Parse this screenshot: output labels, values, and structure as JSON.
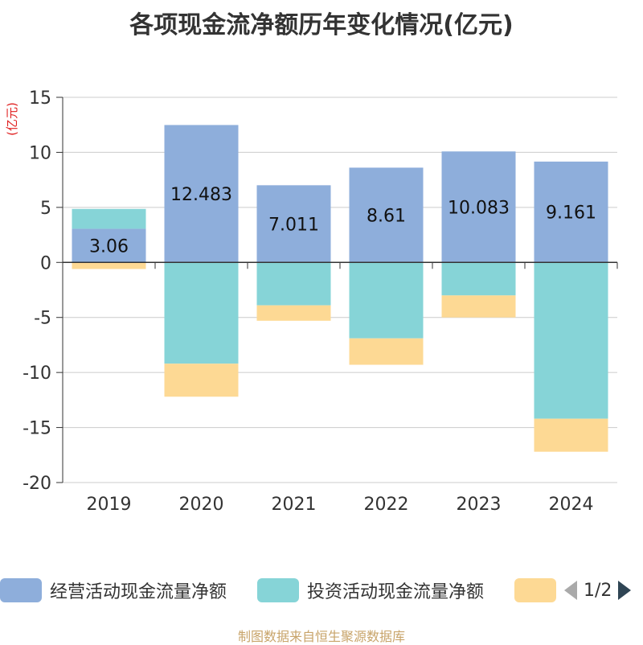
{
  "title": "各项现金流净额历年变化情况(亿元)",
  "footer": "制图数据来自恒生聚源数据库",
  "legend": {
    "items": [
      {
        "label": "经营活动现金流量净额",
        "color": "#8eaedb"
      },
      {
        "label": "投资活动现金流量净额",
        "color": "#86d4d7"
      },
      {
        "label": "",
        "color": "#fdd994"
      }
    ],
    "page": "1/2"
  },
  "chart_data": {
    "type": "bar",
    "stacked": true,
    "categories": [
      "2019",
      "2020",
      "2021",
      "2022",
      "2023",
      "2024"
    ],
    "ylabel": "(亿元)",
    "ylim": [
      -20,
      15
    ],
    "yticks": [
      15,
      10,
      5,
      0,
      -5,
      -10,
      -15,
      -20
    ],
    "grid": true,
    "series": [
      {
        "name": "经营活动现金流量净额",
        "color": "#8eaedb",
        "values": [
          3.06,
          12.483,
          7.011,
          8.61,
          10.083,
          9.161
        ],
        "labels": [
          "3.06",
          "12.483",
          "7.011",
          "8.61",
          "10.083",
          "9.161"
        ]
      },
      {
        "name": "投资活动现金流量净额",
        "color": "#86d4d7",
        "values": [
          1.8,
          -9.2,
          -3.9,
          -6.9,
          -3.0,
          -14.2
        ]
      },
      {
        "name": "",
        "color": "#fdd994",
        "values": [
          -0.6,
          -3.0,
          -1.4,
          -2.4,
          -2.0,
          -3.0
        ]
      }
    ]
  }
}
